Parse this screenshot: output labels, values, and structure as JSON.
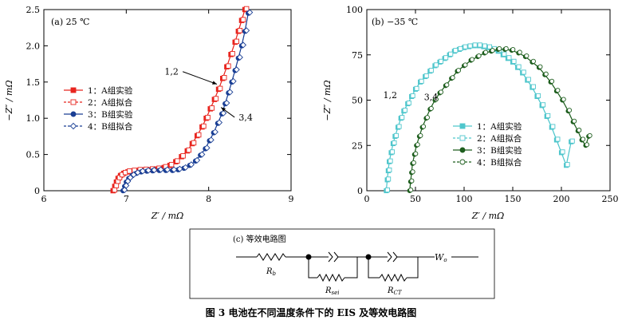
{
  "caption": "图 3    电池在不同温度条件下的 EIS 及等效电路图",
  "chart_data": [
    {
      "type": "line",
      "panel_label": "(a) 25 ℃",
      "xlabel": "Z′ / mΩ",
      "ylabel": "−Z″ / mΩ",
      "xlim": [
        6,
        9
      ],
      "ylim": [
        0,
        2.5
      ],
      "xticks": [
        6,
        7,
        8,
        9
      ],
      "yticks": [
        0,
        0.5,
        1.0,
        1.5,
        2.0,
        2.5
      ],
      "xtick_labels": [
        "6",
        "7",
        "8",
        "9"
      ],
      "ytick_labels": [
        "0",
        "0.5",
        "1.0",
        "1.5",
        "2.0",
        "2.5"
      ],
      "legend_position": "center-left",
      "annotations": [
        {
          "text": "1,2",
          "at": [
            7.55,
            1.6
          ],
          "target": [
            8.1,
            1.47
          ]
        },
        {
          "text": "3,4",
          "at": [
            8.45,
            0.97
          ],
          "target": [
            8.15,
            1.15
          ]
        }
      ],
      "series": [
        {
          "name": "1：A组实验",
          "color": "#e8251e",
          "marker": "square",
          "filled": true,
          "dashed": false,
          "x": [
            6.84,
            6.86,
            6.88,
            6.9,
            6.93,
            6.97,
            7.02,
            7.08,
            7.15,
            7.22,
            7.3,
            7.38,
            7.46,
            7.53,
            7.6,
            7.67,
            7.74,
            7.8,
            7.86,
            7.92,
            7.97,
            8.02,
            8.07,
            8.12,
            8.17,
            8.22,
            8.27,
            8.32,
            8.36,
            8.4,
            8.44
          ],
          "y": [
            0.0,
            0.06,
            0.12,
            0.17,
            0.21,
            0.24,
            0.26,
            0.27,
            0.28,
            0.285,
            0.29,
            0.3,
            0.32,
            0.35,
            0.4,
            0.47,
            0.55,
            0.65,
            0.76,
            0.88,
            1.0,
            1.13,
            1.26,
            1.4,
            1.55,
            1.71,
            1.88,
            2.05,
            2.2,
            2.35,
            2.5
          ]
        },
        {
          "name": "2：A组拟合",
          "color": "#e8251e",
          "marker": "square",
          "filled": false,
          "dashed": true,
          "x": [
            6.84,
            6.86,
            6.88,
            6.9,
            6.93,
            6.97,
            7.02,
            7.08,
            7.15,
            7.22,
            7.3,
            7.38,
            7.46,
            7.53,
            7.6,
            7.67,
            7.74,
            7.8,
            7.86,
            7.92,
            7.97,
            8.02,
            8.07,
            8.12,
            8.17,
            8.22,
            8.27,
            8.32,
            8.36,
            8.4,
            8.44
          ],
          "y": [
            0.0,
            0.06,
            0.12,
            0.17,
            0.21,
            0.24,
            0.26,
            0.27,
            0.28,
            0.285,
            0.29,
            0.3,
            0.32,
            0.35,
            0.4,
            0.47,
            0.55,
            0.65,
            0.76,
            0.88,
            1.0,
            1.13,
            1.26,
            1.4,
            1.55,
            1.71,
            1.88,
            2.05,
            2.2,
            2.35,
            2.5
          ]
        },
        {
          "name": "3：B组实验",
          "color": "#1a3f95",
          "marker": "circle",
          "filled": true,
          "dashed": false,
          "x": [
            6.96,
            6.98,
            7.0,
            7.03,
            7.07,
            7.12,
            7.18,
            7.25,
            7.32,
            7.4,
            7.48,
            7.56,
            7.63,
            7.7,
            7.77,
            7.84,
            7.9,
            7.96,
            8.01,
            8.06,
            8.11,
            8.16,
            8.2,
            8.24,
            8.28,
            8.32,
            8.36,
            8.4,
            8.44,
            8.48
          ],
          "y": [
            0.0,
            0.06,
            0.12,
            0.17,
            0.21,
            0.24,
            0.26,
            0.27,
            0.275,
            0.28,
            0.28,
            0.28,
            0.29,
            0.31,
            0.35,
            0.41,
            0.49,
            0.58,
            0.69,
            0.8,
            0.93,
            1.06,
            1.2,
            1.35,
            1.5,
            1.66,
            1.83,
            2.0,
            2.2,
            2.45
          ]
        },
        {
          "name": "4：B组拟合",
          "color": "#1a3f95",
          "marker": "diamond",
          "filled": false,
          "dashed": true,
          "x": [
            6.96,
            6.98,
            7.0,
            7.03,
            7.07,
            7.12,
            7.18,
            7.25,
            7.32,
            7.4,
            7.48,
            7.56,
            7.63,
            7.7,
            7.77,
            7.84,
            7.9,
            7.96,
            8.01,
            8.06,
            8.11,
            8.16,
            8.2,
            8.24,
            8.28,
            8.32,
            8.36,
            8.4,
            8.44,
            8.48
          ],
          "y": [
            0.0,
            0.06,
            0.12,
            0.17,
            0.21,
            0.24,
            0.26,
            0.27,
            0.275,
            0.28,
            0.28,
            0.28,
            0.29,
            0.31,
            0.35,
            0.41,
            0.49,
            0.58,
            0.69,
            0.8,
            0.93,
            1.06,
            1.2,
            1.35,
            1.5,
            1.66,
            1.83,
            2.0,
            2.2,
            2.45
          ]
        }
      ]
    },
    {
      "type": "line",
      "panel_label": "(b) −35 ℃",
      "xlabel": "Z′ / mΩ",
      "ylabel": "−Z″ / mΩ",
      "xlim": [
        0,
        250
      ],
      "ylim": [
        0,
        100
      ],
      "xticks": [
        0,
        50,
        100,
        150,
        200,
        250
      ],
      "yticks": [
        0,
        25,
        50,
        75,
        100
      ],
      "xtick_labels": [
        "0",
        "50",
        "100",
        "150",
        "200",
        "250"
      ],
      "ytick_labels": [
        "0",
        "25",
        "50",
        "75",
        "100"
      ],
      "legend_position": "bottom-center",
      "annotations": [
        {
          "text": "1,2",
          "at": [
            24,
            51
          ]
        },
        {
          "text": "3,4",
          "at": [
            66,
            50
          ]
        }
      ],
      "series": [
        {
          "name": "1：A组实验",
          "color": "#4fc6cc",
          "marker": "square",
          "filled": true,
          "dashed": false,
          "x": [
            20,
            21,
            22,
            23,
            25,
            27,
            29,
            32,
            35,
            38,
            42,
            46,
            50,
            55,
            60,
            65,
            70,
            75,
            80,
            85,
            90,
            95,
            100,
            105,
            110,
            115,
            120,
            125,
            130,
            135,
            140,
            145,
            150,
            155,
            160,
            165,
            170,
            175,
            180,
            185,
            190,
            195,
            200,
            205,
            210
          ],
          "y": [
            0,
            6,
            11,
            16,
            21,
            26,
            30,
            35,
            40,
            44,
            48,
            52,
            56,
            60,
            63,
            66,
            69,
            71,
            73,
            75,
            77,
            78,
            79,
            79.5,
            80,
            80,
            79.5,
            79,
            78,
            77,
            75,
            73,
            71,
            68,
            65,
            61,
            57,
            52,
            47,
            41,
            35,
            28,
            21,
            14,
            27
          ]
        },
        {
          "name": "2：A组拟合",
          "color": "#4fc6cc",
          "marker": "square",
          "filled": false,
          "dashed": true,
          "x": [
            20,
            21,
            22,
            23,
            25,
            27,
            29,
            32,
            35,
            38,
            42,
            46,
            50,
            55,
            60,
            65,
            70,
            75,
            80,
            85,
            90,
            95,
            100,
            105,
            110,
            115,
            120,
            125,
            130,
            135,
            140,
            145,
            150,
            155,
            160,
            165,
            170,
            175,
            180,
            185,
            190,
            195,
            200,
            205,
            210
          ],
          "y": [
            0,
            6,
            11,
            16,
            21,
            26,
            30,
            35,
            40,
            44,
            48,
            52,
            56,
            60,
            63,
            66,
            69,
            71,
            73,
            75,
            77,
            78,
            79,
            79.5,
            80,
            80,
            79.5,
            79,
            78,
            77,
            75,
            73,
            71,
            68,
            65,
            61,
            57,
            52,
            47,
            41,
            35,
            28,
            21,
            14,
            27
          ]
        },
        {
          "name": "3：B组实验",
          "color": "#1e5e1e",
          "marker": "circle",
          "filled": true,
          "dashed": false,
          "x": [
            44,
            45,
            46,
            47,
            49,
            51,
            54,
            57,
            61,
            65,
            70,
            75,
            81,
            87,
            93,
            100,
            107,
            114,
            121,
            128,
            135,
            142,
            149,
            156,
            163,
            170,
            177,
            183,
            189,
            195,
            201,
            207,
            212,
            217,
            221,
            225,
            228
          ],
          "y": [
            0,
            5,
            10,
            15,
            20,
            25,
            30,
            35,
            40,
            45,
            50,
            54,
            58,
            62,
            66,
            69,
            72,
            74,
            76,
            77,
            78,
            78,
            77.5,
            76,
            74,
            71,
            68,
            64,
            60,
            55,
            50,
            44,
            38,
            33,
            28,
            25,
            30
          ]
        },
        {
          "name": "4：B组拟合",
          "color": "#1e5e1e",
          "marker": "circle",
          "filled": false,
          "dashed": true,
          "x": [
            44,
            45,
            46,
            47,
            49,
            51,
            54,
            57,
            61,
            65,
            70,
            75,
            81,
            87,
            93,
            100,
            107,
            114,
            121,
            128,
            135,
            142,
            149,
            156,
            163,
            170,
            177,
            183,
            189,
            195,
            201,
            207,
            212,
            217,
            221,
            225,
            228
          ],
          "y": [
            0,
            5,
            10,
            15,
            20,
            25,
            30,
            35,
            40,
            45,
            50,
            54,
            58,
            62,
            66,
            69,
            72,
            74,
            76,
            77,
            78,
            78,
            77.5,
            76,
            74,
            71,
            68,
            64,
            60,
            55,
            50,
            44,
            38,
            33,
            28,
            25,
            30
          ]
        }
      ]
    }
  ],
  "circuit": {
    "label": "(c) 等效电路图",
    "elements": [
      "Rb",
      "Rsei",
      "RCT",
      "Wo"
    ],
    "labels": {
      "rb_main": "R",
      "rb_sub": "b",
      "rsei_main": "R",
      "rsei_sub": "sei",
      "rct_main": "R",
      "rct_sub": "CT",
      "w_main": "W",
      "w_sub": "o"
    }
  }
}
